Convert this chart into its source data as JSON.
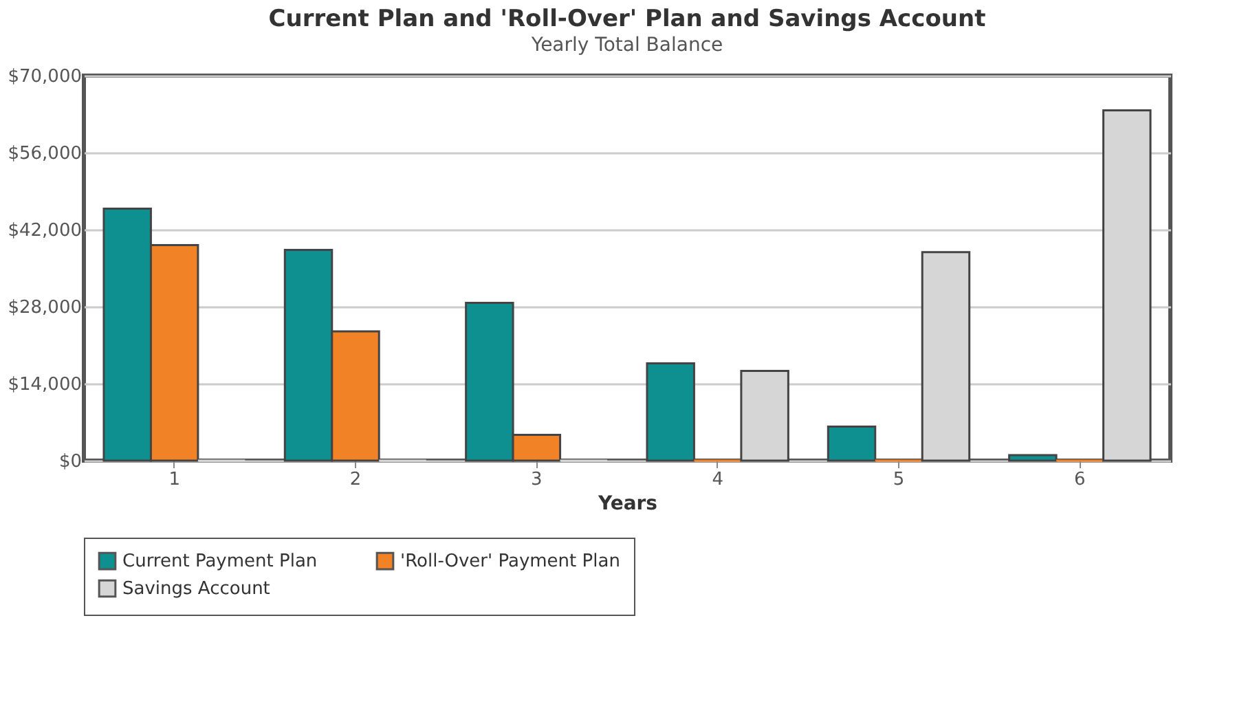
{
  "chart_data": {
    "type": "bar",
    "title": "Current Plan and 'Roll-Over' Plan and Savings Account",
    "subtitle": "Yearly Total Balance",
    "xlabel": "Years",
    "categories": [
      "1",
      "2",
      "3",
      "4",
      "5",
      "6"
    ],
    "series": [
      {
        "name": "Current Payment Plan",
        "color": "#0e9090",
        "values": [
          45800,
          38300,
          28700,
          17700,
          6200,
          1000
        ]
      },
      {
        "name": "'Roll-Over' Payment Plan",
        "color": "#f28226",
        "values": [
          39200,
          23500,
          4700,
          0,
          0,
          0
        ]
      },
      {
        "name": "Savings Account",
        "color": "#d6d6d6",
        "values": [
          0,
          0,
          0,
          16300,
          37900,
          63700
        ]
      }
    ],
    "ylim": [
      0,
      70000
    ],
    "yticks": [
      {
        "value": 0,
        "label": "$0"
      },
      {
        "value": 14000,
        "label": "$14,000"
      },
      {
        "value": 28000,
        "label": "$28,000"
      },
      {
        "value": 42000,
        "label": "$42,000"
      },
      {
        "value": 56000,
        "label": "$56,000"
      },
      {
        "value": 70000,
        "label": "$70,000"
      }
    ],
    "grid": "y",
    "legend": "bottom"
  }
}
